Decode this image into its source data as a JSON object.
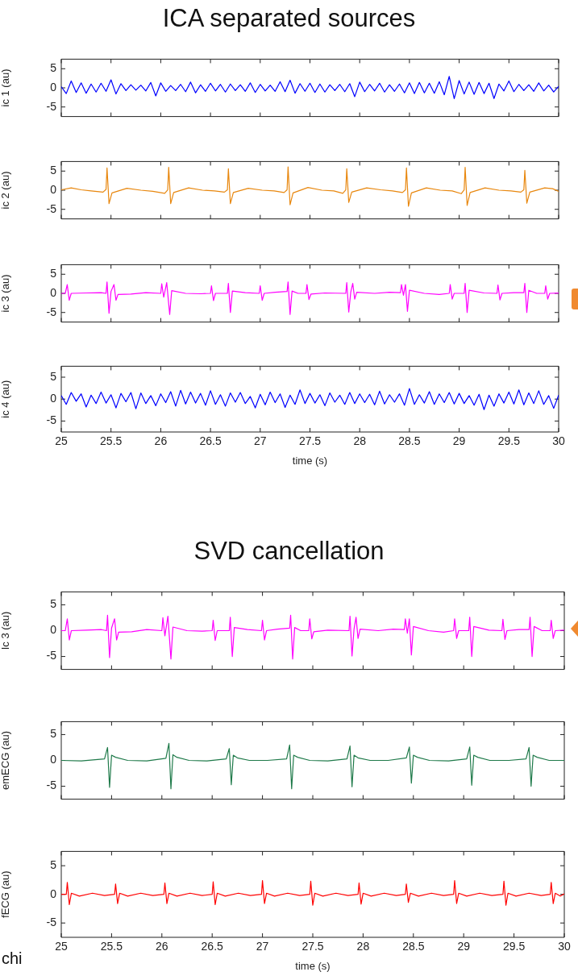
{
  "chart_data": [
    {
      "type": "line",
      "title": "ICA separated sources",
      "ylabel": "ic 1 (au)",
      "color": "#0000ff",
      "xlim": [
        25,
        30
      ],
      "xticks": [
        25,
        25.5,
        26,
        26.5,
        27,
        27.5,
        28,
        28.5,
        29,
        29.5,
        30
      ],
      "ylim": [
        -7.5,
        7.5
      ],
      "yticks": [
        -5,
        0,
        5
      ],
      "tick_labels": "y",
      "x": [
        25.0,
        25.05,
        25.1,
        25.15,
        25.2,
        25.25,
        25.3,
        25.35,
        25.4,
        25.45,
        25.5,
        25.55,
        25.6,
        25.65,
        25.7,
        25.75,
        25.8,
        25.85,
        25.9,
        25.95,
        26.0,
        26.05,
        26.1,
        26.15,
        26.2,
        26.25,
        26.3,
        26.35,
        26.4,
        26.45,
        26.5,
        26.55,
        26.6,
        26.65,
        26.7,
        26.75,
        26.8,
        26.85,
        26.9,
        26.95,
        27.0,
        27.05,
        27.1,
        27.15,
        27.2,
        27.25,
        27.3,
        27.35,
        27.4,
        27.45,
        27.5,
        27.55,
        27.6,
        27.65,
        27.7,
        27.75,
        27.8,
        27.85,
        27.9,
        27.95,
        28.0,
        28.05,
        28.1,
        28.15,
        28.2,
        28.25,
        28.3,
        28.35,
        28.4,
        28.45,
        28.5,
        28.55,
        28.6,
        28.65,
        28.7,
        28.75,
        28.8,
        28.85,
        28.9,
        28.95,
        29.0,
        29.05,
        29.1,
        29.15,
        29.2,
        29.25,
        29.3,
        29.35,
        29.4,
        29.45,
        29.5,
        29.55,
        29.6,
        29.65,
        29.7,
        29.75,
        29.8,
        29.85,
        29.9,
        29.95,
        30.0
      ],
      "values": [
        0.3,
        -1.5,
        1.8,
        -1.2,
        1.3,
        -1.4,
        1.0,
        -1.1,
        1.2,
        -0.9,
        2.1,
        -1.6,
        1.1,
        -0.7,
        0.8,
        -0.6,
        0.7,
        -0.8,
        1.4,
        -2.1,
        1.3,
        -0.9,
        0.6,
        -0.7,
        0.9,
        -1.0,
        1.5,
        -1.3,
        0.8,
        -0.9,
        1.2,
        -0.8,
        0.9,
        -1.1,
        1.0,
        -0.7,
        0.8,
        -0.9,
        1.3,
        -1.2,
        0.9,
        -0.8,
        0.7,
        -0.9,
        1.6,
        -1.0,
        2.0,
        -1.4,
        1.1,
        -0.9,
        1.2,
        -1.2,
        1.0,
        -1.1,
        0.8,
        -0.7,
        0.9,
        -1.0,
        1.1,
        -2.3,
        1.5,
        -1.0,
        0.9,
        -0.8,
        1.2,
        -1.1,
        0.8,
        -0.9,
        1.0,
        -1.3,
        1.3,
        -1.5,
        1.4,
        -1.3,
        1.2,
        -1.4,
        1.6,
        -1.8,
        3.0,
        -2.8,
        1.9,
        -1.6,
        1.5,
        -1.7,
        1.4,
        -1.5,
        1.2,
        -2.8,
        1.0,
        -0.8,
        1.8,
        -1.0,
        0.9,
        -0.7,
        0.8,
        -0.9,
        1.3,
        -0.8,
        0.7,
        -1.1,
        0.4
      ]
    },
    {
      "type": "line",
      "ylabel": "ic 2 (au)",
      "color": "#e8870e",
      "xlim": [
        25,
        30
      ],
      "xticks": [
        25,
        25.5,
        26,
        26.5,
        27,
        27.5,
        28,
        28.5,
        29,
        29.5,
        30
      ],
      "ylim": [
        -7.5,
        7.5
      ],
      "yticks": [
        -5,
        0,
        5
      ],
      "tick_labels": "y",
      "x": [
        25.0,
        25.1,
        25.2,
        25.3,
        25.42,
        25.45,
        25.46,
        25.48,
        25.51,
        25.66,
        25.8,
        25.92,
        26.04,
        26.07,
        26.08,
        26.1,
        26.13,
        26.28,
        26.42,
        26.54,
        26.64,
        26.67,
        26.68,
        26.7,
        26.73,
        26.88,
        27.02,
        27.14,
        27.24,
        27.27,
        27.28,
        27.3,
        27.33,
        27.48,
        27.62,
        27.74,
        27.83,
        27.86,
        27.87,
        27.89,
        27.92,
        28.07,
        28.21,
        28.33,
        28.43,
        28.46,
        28.47,
        28.49,
        28.52,
        28.67,
        28.81,
        28.93,
        29.02,
        29.05,
        29.06,
        29.08,
        29.11,
        29.26,
        29.4,
        29.52,
        29.62,
        29.65,
        29.66,
        29.68,
        29.71,
        29.86,
        29.94,
        30.0
      ],
      "values": [
        0.1,
        0.6,
        0.1,
        -0.2,
        -0.5,
        0.2,
        5.8,
        -3.5,
        -0.7,
        0.5,
        0.0,
        -0.3,
        -0.8,
        0.1,
        6.0,
        -3.5,
        -0.6,
        0.6,
        0.0,
        -0.2,
        -0.5,
        0.1,
        5.6,
        -3.5,
        -0.6,
        0.5,
        0.0,
        -0.2,
        -0.6,
        0.1,
        6.1,
        -3.8,
        -0.7,
        0.7,
        0.0,
        -0.2,
        -0.8,
        0.1,
        5.6,
        -3.2,
        -0.5,
        0.6,
        0.1,
        -0.2,
        -0.6,
        0.1,
        5.8,
        -4.2,
        -0.7,
        0.6,
        0.0,
        -0.2,
        -0.9,
        0.1,
        6.0,
        -4.0,
        -0.6,
        0.6,
        0.0,
        -0.2,
        -0.5,
        0.1,
        5.2,
        -3.4,
        -0.5,
        0.6,
        0.4,
        -0.3
      ]
    },
    {
      "type": "line",
      "ylabel": "ic 3 (au)",
      "color": "#ff00ff",
      "xlim": [
        25,
        30
      ],
      "xticks": [
        25,
        25.5,
        26,
        26.5,
        27,
        27.5,
        28,
        28.5,
        29,
        29.5,
        30
      ],
      "ylim": [
        -7.5,
        7.5
      ],
      "yticks": [
        -5,
        0,
        5
      ],
      "tick_labels": "y",
      "x": [
        25.0,
        25.04,
        25.06,
        25.08,
        25.1,
        25.25,
        25.4,
        25.45,
        25.46,
        25.48,
        25.5,
        25.53,
        25.55,
        25.57,
        25.7,
        25.85,
        26.0,
        26.01,
        26.03,
        26.06,
        26.09,
        26.11,
        26.25,
        26.4,
        26.5,
        26.51,
        26.53,
        26.55,
        26.67,
        26.68,
        26.7,
        26.72,
        26.85,
        26.99,
        27.0,
        27.02,
        27.04,
        27.15,
        27.27,
        27.28,
        27.3,
        27.32,
        27.38,
        27.46,
        27.47,
        27.49,
        27.51,
        27.65,
        27.86,
        27.87,
        27.89,
        27.91,
        27.93,
        27.95,
        27.97,
        28.15,
        28.3,
        28.41,
        28.42,
        28.44,
        28.46,
        28.48,
        28.5,
        28.65,
        28.8,
        28.9,
        28.91,
        28.93,
        28.95,
        29.05,
        29.06,
        29.08,
        29.1,
        29.25,
        29.38,
        29.39,
        29.41,
        29.43,
        29.55,
        29.65,
        29.66,
        29.68,
        29.7,
        29.78,
        29.86,
        29.87,
        29.89,
        29.91,
        30.0
      ],
      "values": [
        0.0,
        0.0,
        2.3,
        -1.8,
        0.0,
        0.1,
        0.2,
        0.0,
        3.0,
        -5.2,
        0.5,
        2.3,
        -1.8,
        -0.3,
        -0.2,
        0.2,
        0.0,
        2.5,
        -1.0,
        2.8,
        -5.5,
        0.7,
        0.0,
        -0.1,
        0.0,
        2.0,
        -1.9,
        0.0,
        0.0,
        2.6,
        -5.0,
        0.6,
        0.2,
        0.0,
        2.0,
        -1.8,
        0.0,
        0.3,
        0.5,
        3.0,
        -5.5,
        0.6,
        0.0,
        0.0,
        2.3,
        -1.6,
        -0.2,
        0.1,
        0.0,
        2.8,
        -4.9,
        0.3,
        2.6,
        -1.5,
        0.3,
        0.0,
        0.3,
        0.2,
        2.3,
        -0.5,
        2.3,
        -4.7,
        0.8,
        0.0,
        -0.3,
        0.0,
        2.3,
        -1.5,
        0.0,
        0.0,
        2.6,
        -5.0,
        0.8,
        0.1,
        0.0,
        2.2,
        -1.7,
        0.0,
        0.2,
        0.2,
        2.6,
        -5.0,
        0.8,
        0.0,
        0.0,
        2.0,
        -1.5,
        0.0,
        0.1
      ]
    },
    {
      "type": "line",
      "xlabel": "time (s)",
      "ylabel": "ic 4 (au)",
      "color": "#0000ff",
      "xlim": [
        25,
        30
      ],
      "xticks": [
        25,
        25.5,
        26,
        26.5,
        27,
        27.5,
        28,
        28.5,
        29,
        29.5,
        30
      ],
      "ylim": [
        -7.5,
        7.5
      ],
      "yticks": [
        -5,
        0,
        5
      ],
      "x": [
        25.0,
        25.05,
        25.1,
        25.15,
        25.2,
        25.25,
        25.3,
        25.35,
        25.4,
        25.45,
        25.5,
        25.55,
        25.6,
        25.65,
        25.7,
        25.75,
        25.8,
        25.85,
        25.9,
        25.95,
        26.0,
        26.05,
        26.1,
        26.15,
        26.2,
        26.25,
        26.3,
        26.35,
        26.4,
        26.45,
        26.5,
        26.55,
        26.6,
        26.65,
        26.7,
        26.75,
        26.8,
        26.85,
        26.9,
        26.95,
        27.0,
        27.05,
        27.1,
        27.15,
        27.2,
        27.25,
        27.3,
        27.35,
        27.4,
        27.45,
        27.5,
        27.55,
        27.6,
        27.65,
        27.7,
        27.75,
        27.8,
        27.85,
        27.9,
        27.95,
        28.0,
        28.05,
        28.1,
        28.15,
        28.2,
        28.25,
        28.3,
        28.35,
        28.4,
        28.45,
        28.5,
        28.55,
        28.6,
        28.65,
        28.7,
        28.75,
        28.8,
        28.85,
        28.9,
        28.95,
        29.0,
        29.05,
        29.1,
        29.15,
        29.2,
        29.25,
        29.3,
        29.35,
        29.4,
        29.45,
        29.5,
        29.55,
        29.6,
        29.65,
        29.7,
        29.75,
        29.8,
        29.85,
        29.9,
        29.95,
        30.0
      ],
      "values": [
        0.8,
        -1.2,
        1.5,
        -0.5,
        1.2,
        -1.8,
        0.9,
        -1.0,
        1.6,
        -0.9,
        1.0,
        -2.0,
        1.3,
        -0.6,
        1.5,
        -2.2,
        1.4,
        -1.0,
        0.8,
        -1.5,
        1.2,
        -0.8,
        1.7,
        -1.6,
        2.0,
        -1.1,
        1.6,
        -0.9,
        1.3,
        -1.4,
        1.9,
        -1.2,
        1.0,
        -1.6,
        1.4,
        -0.7,
        1.5,
        -1.0,
        0.6,
        -2.0,
        1.1,
        -1.3,
        1.6,
        -0.8,
        1.2,
        -1.9,
        0.9,
        -1.2,
        2.1,
        -1.0,
        1.3,
        -0.9,
        1.0,
        -1.5,
        1.4,
        -0.7,
        0.9,
        -1.2,
        1.5,
        -1.0,
        1.2,
        -0.8,
        1.1,
        -1.3,
        1.8,
        -1.1,
        1.0,
        -0.7,
        1.2,
        -1.4,
        2.4,
        -1.2,
        1.0,
        -0.9,
        1.7,
        -1.2,
        1.2,
        -0.8,
        1.5,
        -1.1,
        1.3,
        -1.0,
        0.8,
        -1.4,
        1.1,
        -2.4,
        0.9,
        -1.6,
        1.2,
        -0.9,
        1.6,
        -1.1,
        2.1,
        -1.3,
        1.4,
        -1.0,
        1.9,
        -1.2,
        0.8,
        -2.1,
        0.9
      ]
    },
    {
      "type": "line",
      "title": "SVD cancellation",
      "ylabel": "Ic 3 (au)",
      "color": "#ff00ff",
      "xlim": [
        25,
        30
      ],
      "xticks": [
        25,
        25.5,
        26,
        26.5,
        27,
        27.5,
        28,
        28.5,
        29,
        29.5,
        30
      ],
      "ylim": [
        -7.5,
        7.5
      ],
      "yticks": [
        -5,
        0,
        5
      ],
      "tick_labels": "y",
      "x": [
        25.0,
        25.04,
        25.06,
        25.08,
        25.1,
        25.25,
        25.4,
        25.45,
        25.46,
        25.48,
        25.5,
        25.53,
        25.55,
        25.57,
        25.7,
        25.85,
        26.0,
        26.01,
        26.03,
        26.06,
        26.09,
        26.11,
        26.25,
        26.4,
        26.5,
        26.51,
        26.53,
        26.55,
        26.67,
        26.68,
        26.7,
        26.72,
        26.85,
        26.99,
        27.0,
        27.02,
        27.04,
        27.15,
        27.27,
        27.28,
        27.3,
        27.32,
        27.38,
        27.46,
        27.47,
        27.49,
        27.51,
        27.65,
        27.86,
        27.87,
        27.89,
        27.91,
        27.93,
        27.95,
        27.97,
        28.15,
        28.3,
        28.41,
        28.42,
        28.44,
        28.46,
        28.48,
        28.5,
        28.65,
        28.8,
        28.9,
        28.91,
        28.93,
        28.95,
        29.05,
        29.06,
        29.08,
        29.1,
        29.25,
        29.38,
        29.39,
        29.41,
        29.43,
        29.55,
        29.65,
        29.66,
        29.68,
        29.7,
        29.78,
        29.86,
        29.87,
        29.89,
        29.91,
        30.0
      ],
      "values": [
        0.0,
        0.0,
        2.3,
        -1.8,
        0.0,
        0.1,
        0.2,
        0.0,
        3.0,
        -5.2,
        0.5,
        2.3,
        -1.8,
        -0.3,
        -0.2,
        0.2,
        0.0,
        2.5,
        -1.0,
        2.8,
        -5.5,
        0.7,
        0.0,
        -0.1,
        0.0,
        2.0,
        -1.9,
        0.0,
        0.0,
        2.6,
        -5.0,
        0.6,
        0.2,
        0.0,
        2.0,
        -1.8,
        0.0,
        0.3,
        0.5,
        3.0,
        -5.5,
        0.6,
        0.0,
        0.0,
        2.3,
        -1.6,
        -0.2,
        0.1,
        0.0,
        2.8,
        -4.9,
        0.3,
        2.6,
        -1.5,
        0.3,
        0.0,
        0.3,
        0.2,
        2.3,
        -0.5,
        2.3,
        -4.7,
        0.8,
        0.0,
        -0.3,
        0.0,
        2.3,
        -1.5,
        0.0,
        0.0,
        2.6,
        -5.0,
        0.8,
        0.1,
        0.0,
        2.2,
        -1.7,
        0.0,
        0.2,
        0.2,
        2.6,
        -5.0,
        0.8,
        0.0,
        0.0,
        2.0,
        -1.5,
        0.0,
        0.1
      ]
    },
    {
      "type": "line",
      "ylabel": "emECG (au)",
      "color": "#1f7a4a",
      "xlim": [
        25,
        30
      ],
      "xticks": [
        25,
        25.5,
        26,
        26.5,
        27,
        27.5,
        28,
        28.5,
        29,
        29.5,
        30
      ],
      "ylim": [
        -7.5,
        7.5
      ],
      "yticks": [
        -5,
        0,
        5
      ],
      "tick_labels": "y",
      "x": [
        25.0,
        25.2,
        25.43,
        25.46,
        25.48,
        25.5,
        25.54,
        25.66,
        25.85,
        26.04,
        26.07,
        26.09,
        26.11,
        26.15,
        26.27,
        26.45,
        26.64,
        26.67,
        26.69,
        26.71,
        26.75,
        26.87,
        27.05,
        27.24,
        27.27,
        27.29,
        27.31,
        27.35,
        27.47,
        27.65,
        27.84,
        27.87,
        27.89,
        27.91,
        27.95,
        28.07,
        28.25,
        28.43,
        28.46,
        28.48,
        28.5,
        28.54,
        28.66,
        28.85,
        29.03,
        29.06,
        29.08,
        29.1,
        29.14,
        29.26,
        29.45,
        29.62,
        29.65,
        29.67,
        29.69,
        29.73,
        29.85,
        30.0
      ],
      "values": [
        0.0,
        -0.1,
        0.3,
        2.5,
        -5.2,
        1.0,
        0.6,
        0.0,
        -0.1,
        0.4,
        3.3,
        -5.5,
        1.1,
        0.6,
        0.0,
        -0.1,
        0.3,
        2.3,
        -4.7,
        1.0,
        0.5,
        0.0,
        0.0,
        0.3,
        3.0,
        -5.5,
        1.0,
        0.6,
        0.0,
        -0.1,
        0.3,
        2.8,
        -5.1,
        1.0,
        0.5,
        0.0,
        0.0,
        0.5,
        2.6,
        -4.4,
        1.0,
        0.6,
        0.0,
        -0.1,
        0.3,
        2.6,
        -4.8,
        1.0,
        0.6,
        0.0,
        0.0,
        0.3,
        2.5,
        -5.0,
        1.0,
        0.6,
        0.0,
        0.0
      ]
    },
    {
      "type": "line",
      "xlabel": "time (s)",
      "ylabel": "fECG (au)",
      "color": "#ff0000",
      "xlim": [
        25,
        30
      ],
      "xticks": [
        25,
        25.5,
        26,
        26.5,
        27,
        27.5,
        28,
        28.5,
        29,
        29.5,
        30
      ],
      "ylim": [
        -7.5,
        7.5
      ],
      "yticks": [
        -5,
        0,
        5
      ],
      "annotations": [
        "chi"
      ],
      "x": [
        25.0,
        25.05,
        25.06,
        25.08,
        25.1,
        25.18,
        25.31,
        25.43,
        25.53,
        25.54,
        25.56,
        25.58,
        25.66,
        25.79,
        25.91,
        26.02,
        26.03,
        26.05,
        26.07,
        26.15,
        26.28,
        26.4,
        26.5,
        26.51,
        26.53,
        26.55,
        26.63,
        26.76,
        26.88,
        26.99,
        27.0,
        27.02,
        27.04,
        27.12,
        27.25,
        27.37,
        27.47,
        27.48,
        27.5,
        27.52,
        27.6,
        27.73,
        27.85,
        27.95,
        27.96,
        27.98,
        28.0,
        28.08,
        28.21,
        28.33,
        28.42,
        28.43,
        28.45,
        28.47,
        28.55,
        28.68,
        28.8,
        28.9,
        28.91,
        28.93,
        28.95,
        29.03,
        29.16,
        29.28,
        29.39,
        29.4,
        29.42,
        29.44,
        29.52,
        29.65,
        29.77,
        29.86,
        29.87,
        29.89,
        29.91,
        29.96,
        30.0
      ],
      "values": [
        0.0,
        0.0,
        2.1,
        -1.8,
        0.2,
        -0.3,
        0.2,
        -0.2,
        0.0,
        1.8,
        -1.6,
        0.2,
        -0.3,
        0.2,
        -0.2,
        0.0,
        2.0,
        -1.6,
        0.2,
        -0.3,
        0.2,
        -0.2,
        0.0,
        2.2,
        -1.8,
        0.2,
        -0.3,
        0.2,
        -0.2,
        0.0,
        2.4,
        -1.6,
        0.2,
        -0.3,
        0.2,
        -0.2,
        0.0,
        2.3,
        -1.9,
        0.2,
        -0.3,
        0.2,
        -0.2,
        0.0,
        2.0,
        -1.7,
        0.2,
        -0.3,
        0.2,
        -0.2,
        0.0,
        1.8,
        -1.4,
        0.2,
        -0.3,
        0.2,
        -0.2,
        0.0,
        2.4,
        -1.6,
        0.2,
        -0.3,
        0.2,
        -0.2,
        0.0,
        2.3,
        -1.9,
        0.2,
        -0.3,
        0.2,
        -0.2,
        0.0,
        2.1,
        -1.6,
        0.2,
        -0.3,
        0.1
      ]
    }
  ]
}
